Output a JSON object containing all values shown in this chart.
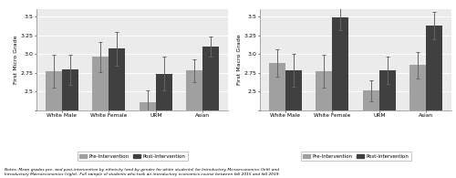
{
  "left_chart": {
    "ylabel": "First Micro Grade",
    "categories": [
      "White Male",
      "White Female",
      "URM",
      "Asian"
    ],
    "pre": [
      2.77,
      2.96,
      2.36,
      2.78
    ],
    "post": [
      2.79,
      3.07,
      2.74,
      3.1
    ],
    "pre_err": [
      0.22,
      0.2,
      0.15,
      0.15
    ],
    "post_err": [
      0.2,
      0.22,
      0.22,
      0.13
    ]
  },
  "right_chart": {
    "ylabel": "First Macro Grade",
    "categories": [
      "White Male",
      "White Female",
      "URM",
      "Asian"
    ],
    "pre": [
      2.88,
      2.77,
      2.51,
      2.85
    ],
    "post": [
      2.78,
      3.49,
      2.78,
      3.38
    ],
    "pre_err": [
      0.18,
      0.22,
      0.14,
      0.18
    ],
    "post_err": [
      0.22,
      0.17,
      0.18,
      0.18
    ]
  },
  "ylim": [
    2.25,
    3.6
  ],
  "yticks": [
    2.25,
    2.5,
    2.75,
    3.0,
    3.25,
    3.5
  ],
  "bar_width": 0.35,
  "pre_color": "#a0a0a0",
  "post_color": "#404040",
  "legend_labels": [
    "Pre-Intervention",
    "Post-Intervention"
  ],
  "notes": "Notes: Mean grades pre- and post-intervention by ethnicity (and by gender for white students) for Introductory Microeconomics (left) and\nIntroductory Macroeconomics (right). Full sample of students who took an introductory economics course between fall 2015 and fall 2019.",
  "background_color": "#ebebeb"
}
